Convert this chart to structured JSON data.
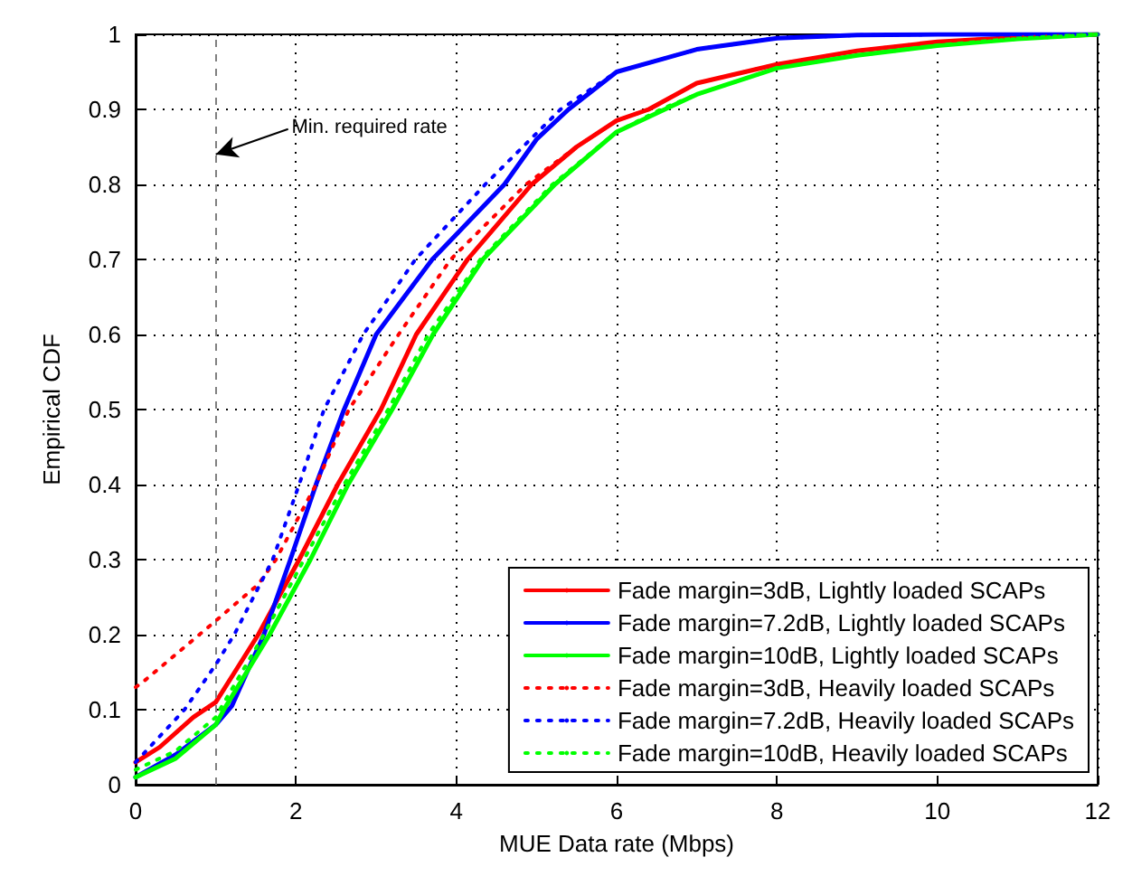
{
  "chart_data": {
    "type": "line",
    "xlabel": "MUE Data rate (Mbps)",
    "ylabel": "Empirical CDF",
    "xlim": [
      0,
      12
    ],
    "ylim": [
      0,
      1
    ],
    "xticks": [
      0,
      2,
      4,
      6,
      8,
      10,
      12
    ],
    "yticks": [
      0,
      0.1,
      0.2,
      0.3,
      0.4,
      0.5,
      0.6,
      0.7,
      0.8,
      0.9,
      1
    ],
    "grid": true,
    "legend": "bottom right",
    "marker": "none",
    "ref_lines": [
      {
        "axis": "x",
        "value": 1,
        "color": "#808080",
        "line_style": "dashed"
      }
    ],
    "annotations": [
      {
        "text": "Min. required rate",
        "x": 1,
        "y": 0.84
      }
    ],
    "series": [
      {
        "name": "Fade margin=3dB, Lightly loaded SCAPs",
        "color": "#ff0000",
        "line_style": "solid",
        "x": [
          0,
          0.3,
          0.72,
          1,
          1.53,
          2.04,
          2.52,
          3.06,
          3.5,
          4.14,
          4.94,
          5.5,
          6,
          6.4,
          7,
          8,
          9,
          10,
          11,
          12
        ],
        "values": [
          0.03,
          0.05,
          0.09,
          0.11,
          0.2,
          0.3,
          0.4,
          0.5,
          0.6,
          0.7,
          0.8,
          0.85,
          0.885,
          0.9,
          0.935,
          0.96,
          0.978,
          0.99,
          0.996,
          1
        ]
      },
      {
        "name": "Fade margin=7.2dB, Lightly loaded SCAPs",
        "color": "#0000ff",
        "line_style": "solid",
        "x": [
          0,
          0.5,
          1,
          1.2,
          1.6,
          1.93,
          2.25,
          2.6,
          3,
          3.7,
          4.6,
          5,
          5.4,
          6,
          7,
          8,
          9,
          10,
          12
        ],
        "values": [
          0.01,
          0.04,
          0.08,
          0.105,
          0.2,
          0.3,
          0.4,
          0.5,
          0.6,
          0.7,
          0.8,
          0.86,
          0.9,
          0.95,
          0.98,
          0.995,
          0.999,
          1,
          1
        ]
      },
      {
        "name": "Fade margin=10dB, Lightly loaded SCAPs",
        "color": "#00ff00",
        "line_style": "solid",
        "x": [
          0,
          0.5,
          1,
          1.1,
          1.67,
          2.18,
          2.65,
          3.2,
          3.71,
          4.33,
          5.23,
          6,
          6.6,
          7,
          8,
          9,
          10,
          11,
          12
        ],
        "values": [
          0.01,
          0.035,
          0.08,
          0.1,
          0.2,
          0.3,
          0.4,
          0.5,
          0.6,
          0.7,
          0.8,
          0.87,
          0.9,
          0.92,
          0.955,
          0.972,
          0.985,
          0.994,
          1
        ]
      },
      {
        "name": "Fade margin=3dB, Heavily loaded SCAPs",
        "color": "#ff0000",
        "line_style": "dotted",
        "x": [
          0,
          0.07,
          0.94,
          1.53,
          1.75,
          2.25,
          2.66,
          3.28,
          3.93,
          4.87,
          5.5,
          6,
          6.4,
          7,
          8,
          9,
          10,
          11,
          12
        ],
        "values": [
          0.13,
          0.135,
          0.213,
          0.267,
          0.3,
          0.4,
          0.5,
          0.6,
          0.7,
          0.8,
          0.85,
          0.885,
          0.9,
          0.935,
          0.96,
          0.978,
          0.99,
          0.996,
          1
        ]
      },
      {
        "name": "Fade margin=7.2dB, Heavily loaded SCAPs",
        "color": "#0000ff",
        "line_style": "dotted",
        "x": [
          0,
          0.61,
          1,
          1.23,
          1.71,
          2.04,
          2.35,
          2.84,
          3.49,
          4.36,
          5.3,
          6,
          7,
          8,
          9,
          10,
          12
        ],
        "values": [
          0.03,
          0.1,
          0.16,
          0.2,
          0.3,
          0.4,
          0.5,
          0.6,
          0.7,
          0.8,
          0.9,
          0.95,
          0.98,
          0.995,
          0.999,
          1,
          1
        ]
      },
      {
        "name": "Fade margin=10dB, Heavily loaded SCAPs",
        "color": "#00ff00",
        "line_style": "dotted",
        "x": [
          0,
          0.5,
          1,
          1.05,
          1.6,
          2.1,
          2.6,
          3.15,
          3.65,
          4.3,
          5.2,
          6,
          6.55,
          7,
          8,
          9,
          10,
          11,
          12
        ],
        "values": [
          0.02,
          0.045,
          0.09,
          0.1,
          0.2,
          0.3,
          0.4,
          0.5,
          0.6,
          0.7,
          0.8,
          0.87,
          0.9,
          0.92,
          0.955,
          0.972,
          0.985,
          0.994,
          1
        ]
      }
    ]
  }
}
